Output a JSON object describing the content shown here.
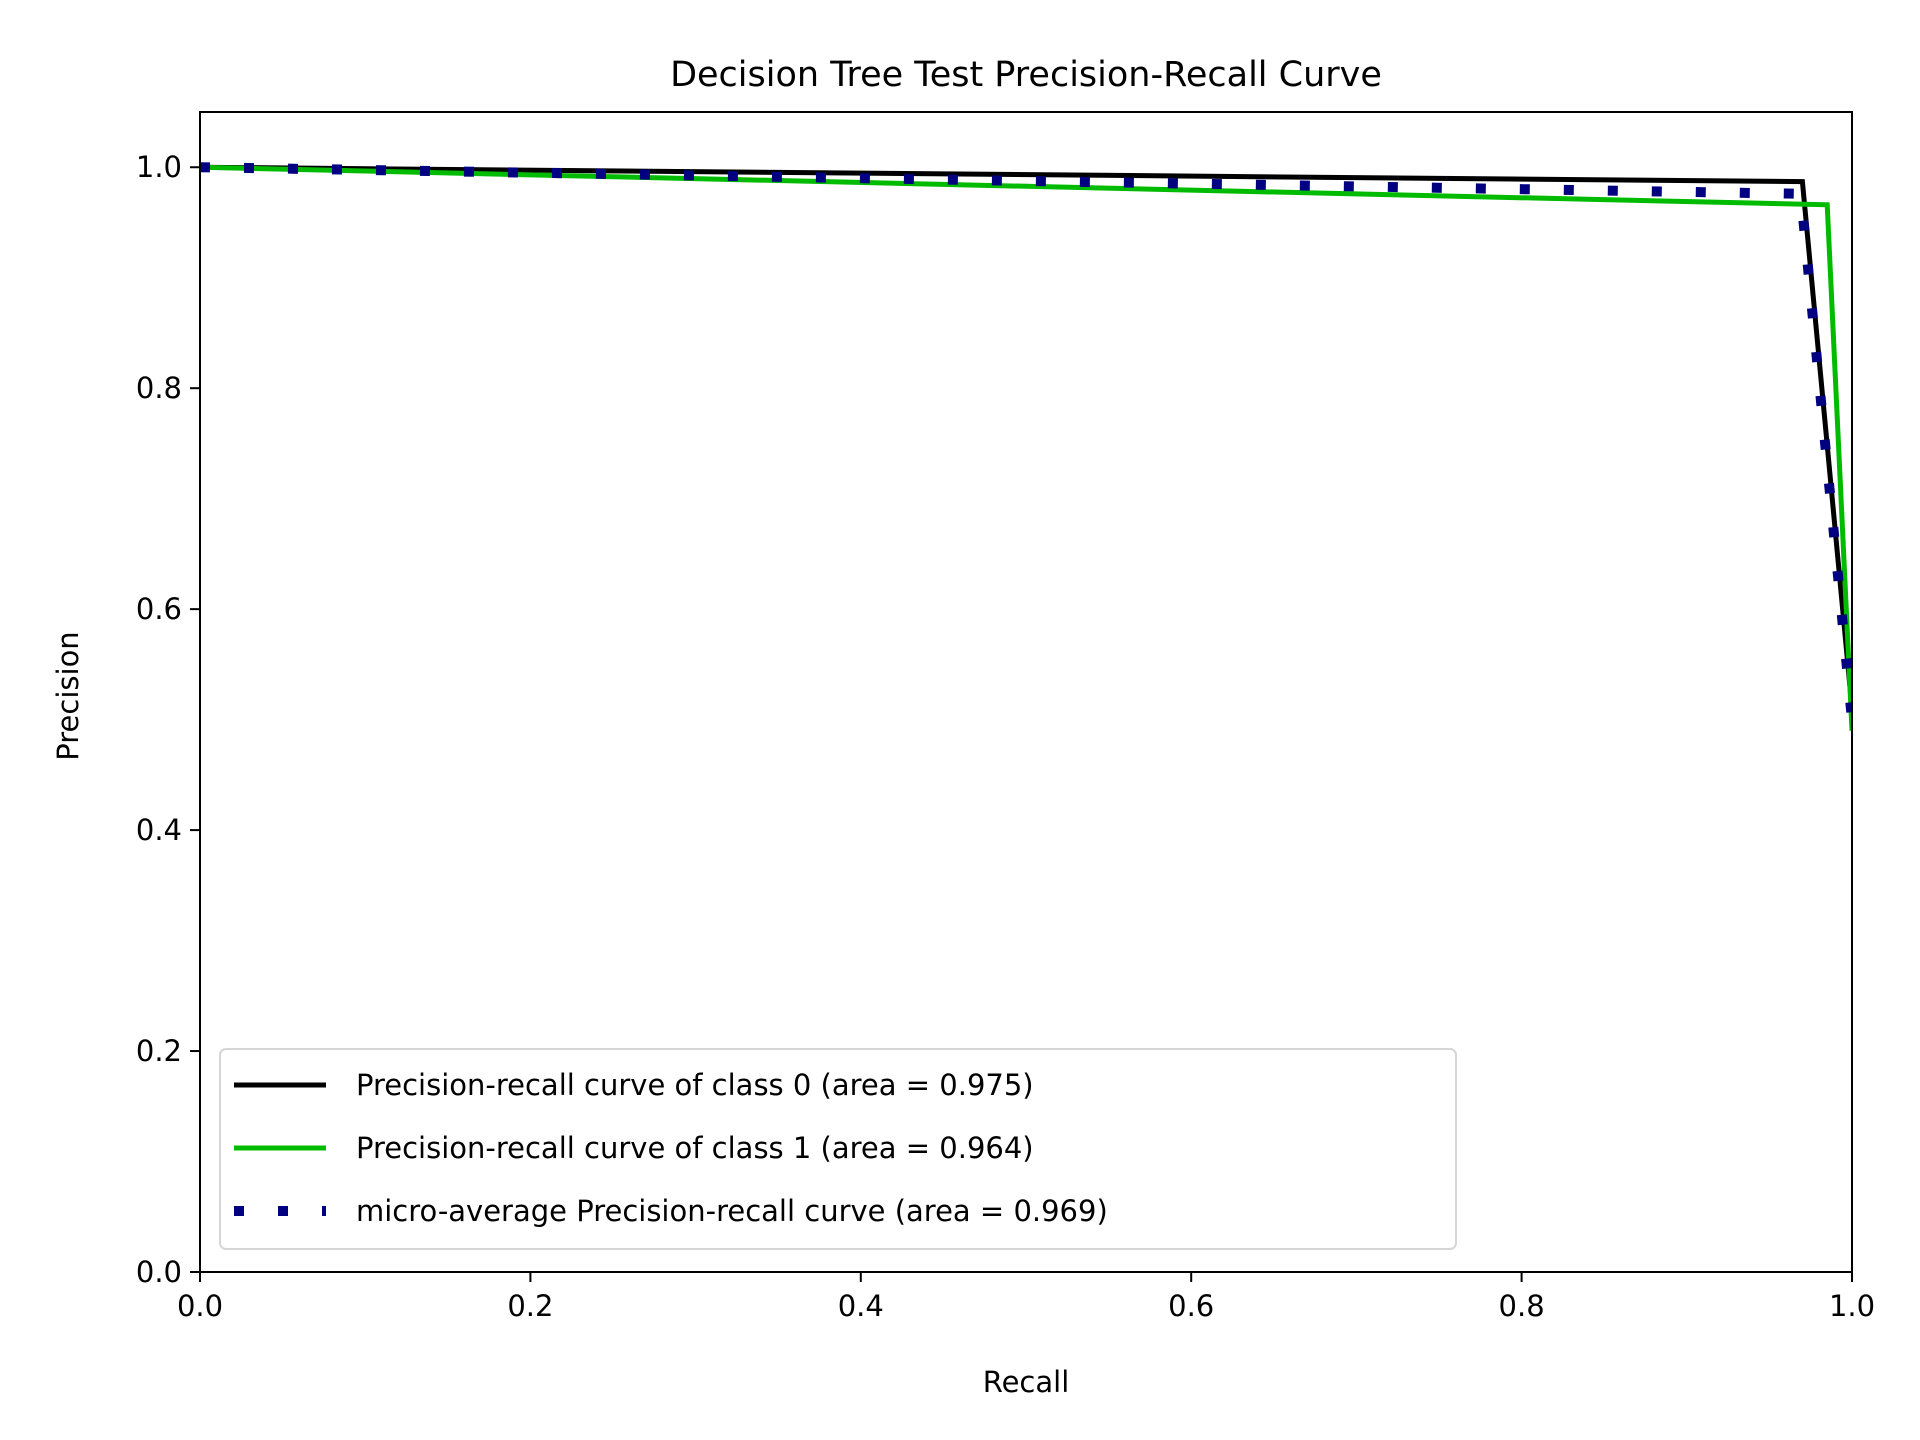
{
  "chart_data": {
    "type": "line",
    "title": "Decision Tree Test Precision-Recall Curve",
    "xlabel": "Recall",
    "ylabel": "Precision",
    "xlim": [
      0.0,
      1.0
    ],
    "ylim": [
      0.0,
      1.05
    ],
    "xticks": [
      0.0,
      0.2,
      0.4,
      0.6,
      0.8,
      1.0
    ],
    "xtick_labels": [
      "0.0",
      "0.2",
      "0.4",
      "0.6",
      "0.8",
      "1.0"
    ],
    "yticks": [
      0.0,
      0.2,
      0.4,
      0.6,
      0.8,
      1.0
    ],
    "ytick_labels": [
      "0.0",
      "0.2",
      "0.4",
      "0.6",
      "0.8",
      "1.0"
    ],
    "grid": false,
    "legend_position": "lower-left",
    "series": [
      {
        "name": "Precision-recall curve of class 0 (area = 0.975)",
        "color": "#000000",
        "style": "solid",
        "x": [
          0.0,
          0.97,
          1.0
        ],
        "y": [
          1.0,
          0.987,
          0.51
        ]
      },
      {
        "name": "Precision-recall curve of class 1 (area = 0.964)",
        "color": "#00bb00",
        "style": "solid",
        "x": [
          0.0,
          0.985,
          1.0
        ],
        "y": [
          1.0,
          0.966,
          0.49
        ]
      },
      {
        "name": "micro-average Precision-recall curve (area = 0.969)",
        "color": "#000080",
        "style": "dotted",
        "x": [
          0.0,
          0.969,
          1.0
        ],
        "y": [
          1.0,
          0.976,
          0.5
        ]
      }
    ]
  }
}
